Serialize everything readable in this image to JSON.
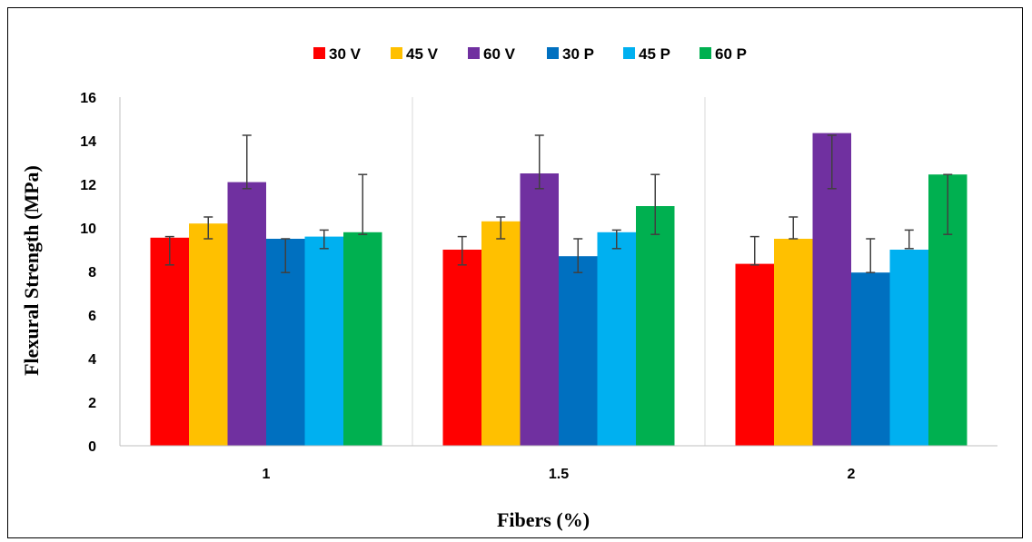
{
  "chart_data": {
    "type": "bar",
    "title": "",
    "xlabel": "Fibers (%)",
    "ylabel": "Flexural Strength (MPa)",
    "ylim": [
      0,
      16
    ],
    "yticks": [
      "0",
      "2",
      "4",
      "6",
      "8",
      "10",
      "12",
      "14",
      "16"
    ],
    "categories": [
      "1",
      "1.5",
      "2"
    ],
    "legend_position": "top",
    "grid": "vertical separators between categories",
    "error_bars": true,
    "series": [
      {
        "name": "30 V",
        "color": "#ff0000",
        "values": [
          9.55,
          9.0,
          8.35
        ],
        "error_low": [
          8.3,
          8.3,
          8.3
        ],
        "error_high": [
          9.6,
          9.6,
          9.6
        ]
      },
      {
        "name": "45 V",
        "color": "#ffc000",
        "values": [
          10.2,
          10.3,
          9.5
        ],
        "error_low": [
          9.5,
          9.5,
          9.5
        ],
        "error_high": [
          10.5,
          10.5,
          10.5
        ]
      },
      {
        "name": "60 V",
        "color": "#7030a0",
        "values": [
          12.1,
          12.5,
          14.35
        ],
        "error_low": [
          11.8,
          11.8,
          11.8
        ],
        "error_high": [
          14.25,
          14.25,
          14.25
        ]
      },
      {
        "name": "30 P",
        "color": "#0070c0",
        "values": [
          9.5,
          8.7,
          7.95
        ],
        "error_low": [
          7.95,
          7.95,
          7.95
        ],
        "error_high": [
          9.5,
          9.5,
          9.5
        ]
      },
      {
        "name": "45 P",
        "color": "#00b0f0",
        "values": [
          9.6,
          9.8,
          9.0
        ],
        "error_low": [
          9.05,
          9.05,
          9.05
        ],
        "error_high": [
          9.9,
          9.9,
          9.9
        ]
      },
      {
        "name": "60 P",
        "color": "#00b050",
        "values": [
          9.8,
          11.0,
          12.45
        ],
        "error_low": [
          9.7,
          9.7,
          9.7
        ],
        "error_high": [
          12.45,
          12.45,
          12.45
        ]
      }
    ]
  }
}
